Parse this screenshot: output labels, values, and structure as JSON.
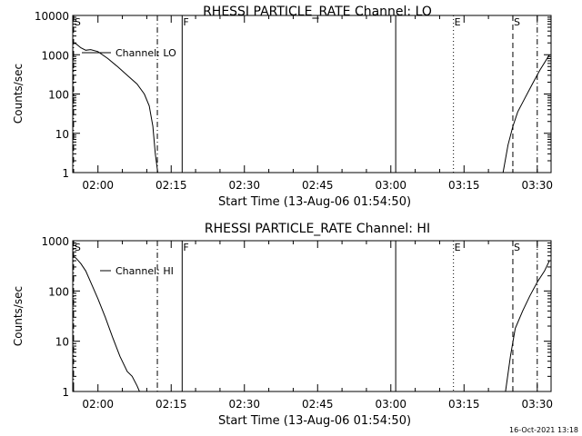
{
  "footer": {
    "stamp": "16-Oct-2021 13:18"
  },
  "chart_data": [
    {
      "type": "line",
      "title": "RHESSI PARTICLE_RATE Channel: LO",
      "xlabel": "Start Time (13-Aug-06 01:54:50)",
      "ylabel": "Counts/sec",
      "y_scale": "log",
      "xlim": [
        "01:54:50",
        "03:32:50"
      ],
      "ylim": [
        1,
        10000
      ],
      "x_ticks": [
        "02:00",
        "02:15",
        "02:30",
        "02:45",
        "03:00",
        "03:15",
        "03:30"
      ],
      "y_ticks": [
        "1",
        "10",
        "100",
        "1000",
        "10000"
      ],
      "series": [
        {
          "name": "Channel: LO",
          "segments": [
            {
              "x": [
                "01:54:50",
                "01:55:30",
                "01:56:30",
                "01:57:30",
                "01:58:30",
                "02:00:00",
                "02:02:00",
                "02:04:00",
                "02:06:00",
                "02:08:00",
                "02:09:30",
                "02:10:30",
                "02:11:15",
                "02:11:45",
                "02:12:15"
              ],
              "y": [
                2000,
                1900,
                1500,
                1300,
                1350,
                1200,
                800,
                500,
                300,
                180,
                100,
                50,
                15,
                3,
                1
              ]
            },
            {
              "x": [
                "03:23:00",
                "03:24:00",
                "03:25:00",
                "03:26:00",
                "03:27:30",
                "03:29:00",
                "03:30:30",
                "03:32:30"
              ],
              "y": [
                1,
                5,
                15,
                35,
                80,
                180,
                400,
                1000
              ]
            }
          ]
        }
      ],
      "markers": [
        {
          "label": "S",
          "time": "01:55:00",
          "style": "dash-dot"
        },
        {
          "label": "",
          "time": "02:12:10",
          "style": "dash-dot"
        },
        {
          "label": "F",
          "time": "02:17:15",
          "style": "solid"
        },
        {
          "label": "",
          "time": "03:01:00",
          "style": "solid"
        },
        {
          "label": "E",
          "time": "03:12:50",
          "style": "dotted"
        },
        {
          "label": "S",
          "time": "03:25:00",
          "style": "dashed"
        },
        {
          "label": "",
          "time": "03:30:00",
          "style": "dash-dot"
        }
      ]
    },
    {
      "type": "line",
      "title": "RHESSI PARTICLE_RATE Channel: HI",
      "xlabel": "Start Time (13-Aug-06 01:54:50)",
      "ylabel": "Counts/sec",
      "y_scale": "log",
      "xlim": [
        "01:54:50",
        "03:32:50"
      ],
      "ylim": [
        1,
        1000
      ],
      "x_ticks": [
        "02:00",
        "02:15",
        "02:30",
        "02:45",
        "03:00",
        "03:15",
        "03:30"
      ],
      "y_ticks": [
        "1",
        "10",
        "100",
        "1000"
      ],
      "series": [
        {
          "name": "Channel: HI",
          "segments": [
            {
              "x": [
                "01:54:50",
                "01:55:30",
                "01:56:30",
                "01:57:30",
                "01:58:30",
                "02:00:00",
                "02:01:30",
                "02:03:00",
                "02:04:30",
                "02:06:00",
                "02:07:00",
                "02:08:00",
                "02:08:30"
              ],
              "y": [
                500,
                450,
                350,
                250,
                150,
                70,
                30,
                12,
                5,
                2.5,
                2,
                1.3,
                1
              ]
            },
            {
              "x": [
                "03:23:30",
                "03:24:30",
                "03:25:30",
                "03:27:00",
                "03:28:30",
                "03:30:00",
                "03:31:30",
                "03:32:30"
              ],
              "y": [
                1,
                5,
                18,
                40,
                80,
                150,
                250,
                400
              ]
            }
          ]
        }
      ],
      "markers": [
        {
          "label": "S",
          "time": "01:55:00",
          "style": "dash-dot"
        },
        {
          "label": "",
          "time": "02:12:10",
          "style": "dash-dot"
        },
        {
          "label": "F",
          "time": "02:17:15",
          "style": "solid"
        },
        {
          "label": "",
          "time": "03:01:00",
          "style": "solid"
        },
        {
          "label": "E",
          "time": "03:12:50",
          "style": "dotted"
        },
        {
          "label": "S",
          "time": "03:25:00",
          "style": "dashed"
        },
        {
          "label": "",
          "time": "03:30:00",
          "style": "dash-dot"
        }
      ]
    }
  ]
}
